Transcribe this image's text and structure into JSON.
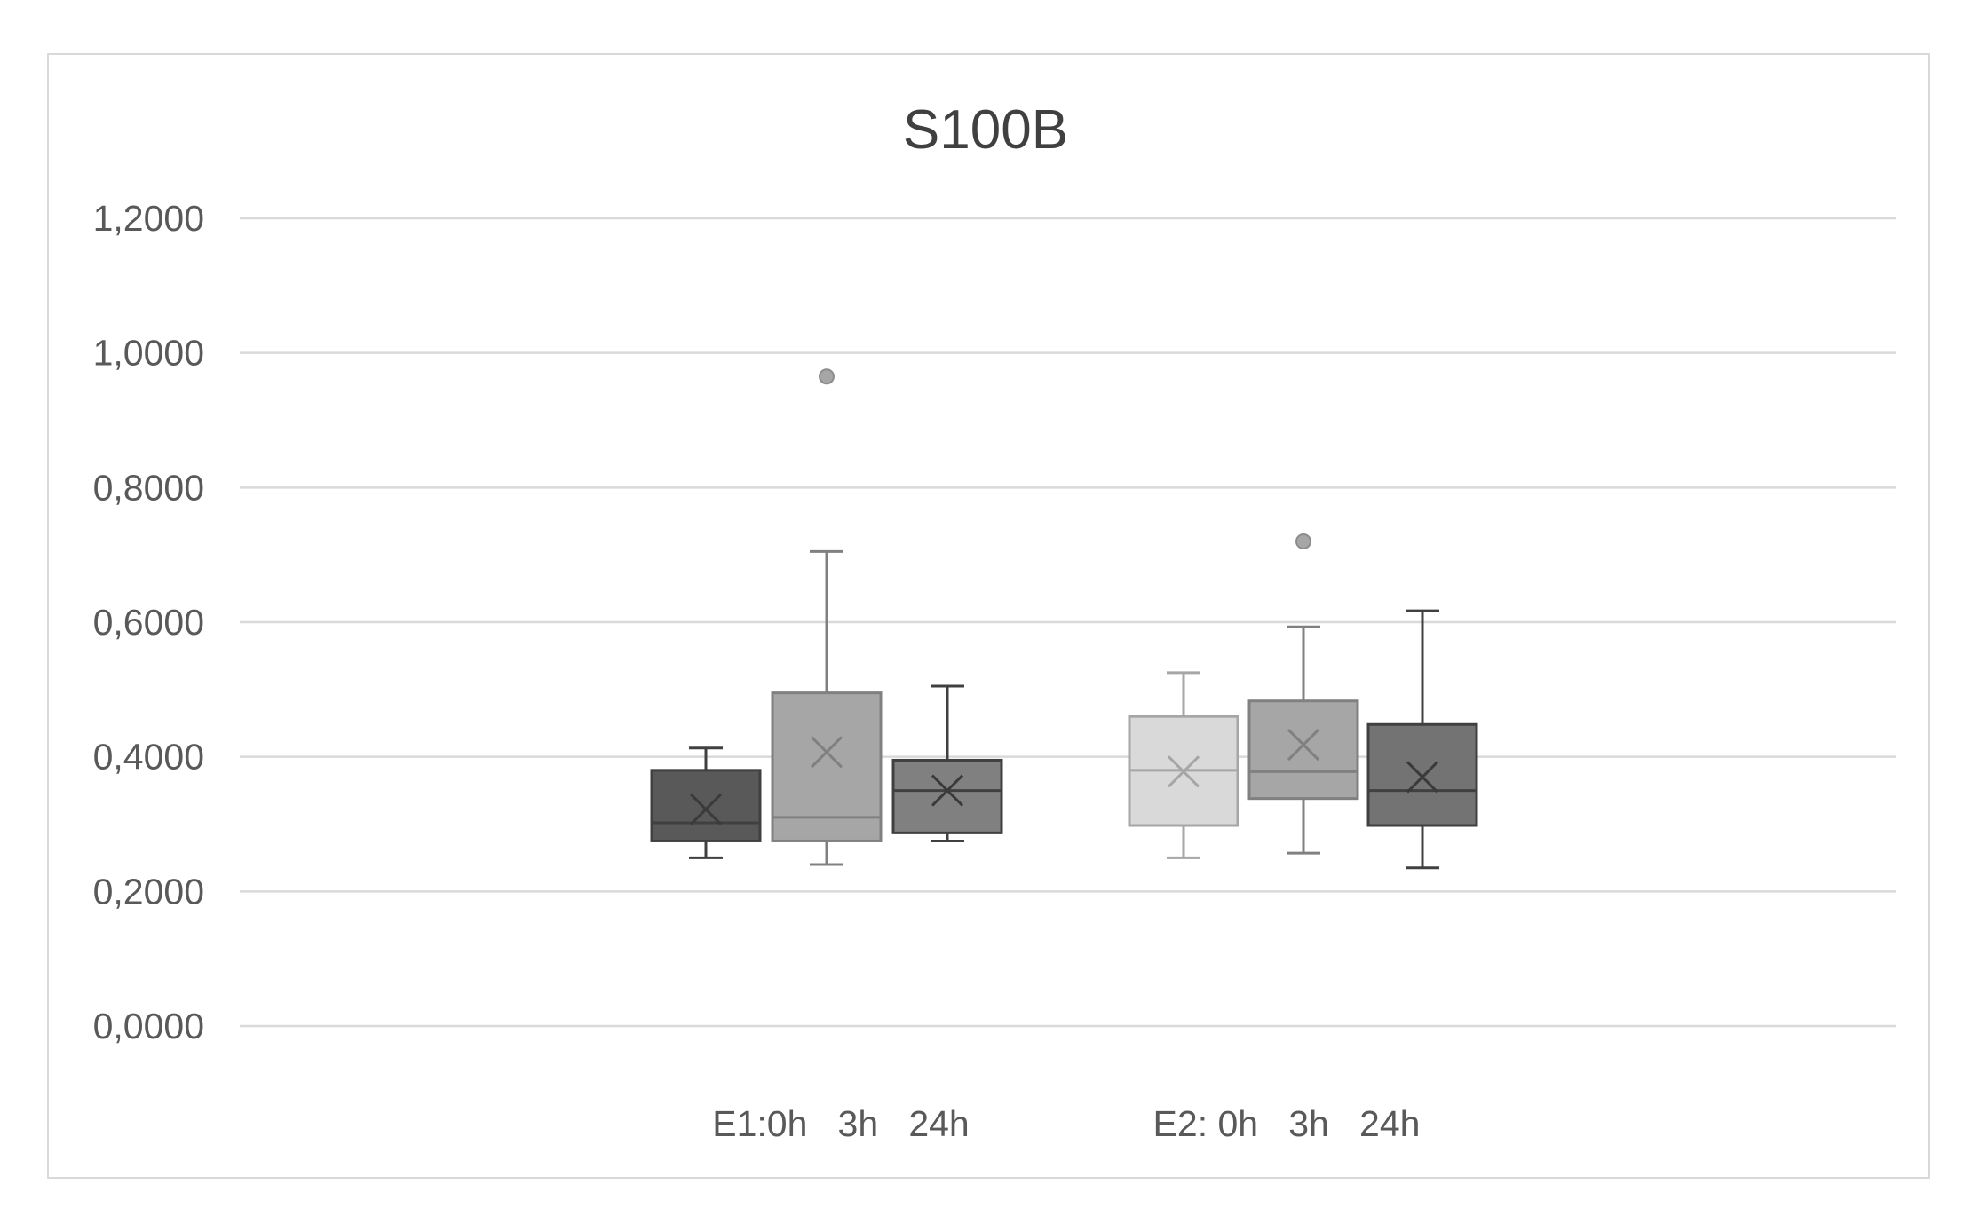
{
  "chart_data": {
    "type": "box",
    "title": "S100B",
    "xlabel": "",
    "ylabel": "",
    "ylim": [
      0,
      1.2
    ],
    "yticks": [
      "0,0000",
      "0,2000",
      "0,4000",
      "0,6000",
      "0,8000",
      "1,0000",
      "1,2000"
    ],
    "ytick_values": [
      0,
      0.2,
      0.4,
      0.6,
      0.8,
      1.0,
      1.2
    ],
    "grid": true,
    "group_labels": [
      "E1:0h   3h   24h",
      "E2: 0h   3h   24h"
    ],
    "boxes": [
      {
        "group": 0,
        "min": 0.25,
        "q1": 0.275,
        "median": 0.302,
        "q3": 0.38,
        "max": 0.413,
        "mean": 0.322,
        "outliers": [],
        "color": "#595959"
      },
      {
        "group": 0,
        "min": 0.24,
        "q1": 0.275,
        "median": 0.31,
        "q3": 0.495,
        "max": 0.705,
        "mean": 0.407,
        "outliers": [
          0.965
        ],
        "color": "#a6a6a6"
      },
      {
        "group": 0,
        "min": 0.275,
        "q1": 0.287,
        "median": 0.35,
        "q3": 0.395,
        "max": 0.505,
        "mean": 0.35,
        "outliers": [],
        "color": "#808080"
      },
      {
        "group": 1,
        "min": 0.25,
        "q1": 0.298,
        "median": 0.38,
        "q3": 0.46,
        "max": 0.525,
        "mean": 0.378,
        "outliers": [],
        "color": "#d9d9d9"
      },
      {
        "group": 1,
        "min": 0.257,
        "q1": 0.338,
        "median": 0.378,
        "q3": 0.483,
        "max": 0.593,
        "mean": 0.418,
        "outliers": [
          0.72
        ],
        "color": "#a6a6a6"
      },
      {
        "group": 1,
        "min": 0.235,
        "q1": 0.298,
        "median": 0.35,
        "q3": 0.448,
        "max": 0.617,
        "mean": 0.37,
        "outliers": [],
        "color": "#737373"
      }
    ]
  }
}
